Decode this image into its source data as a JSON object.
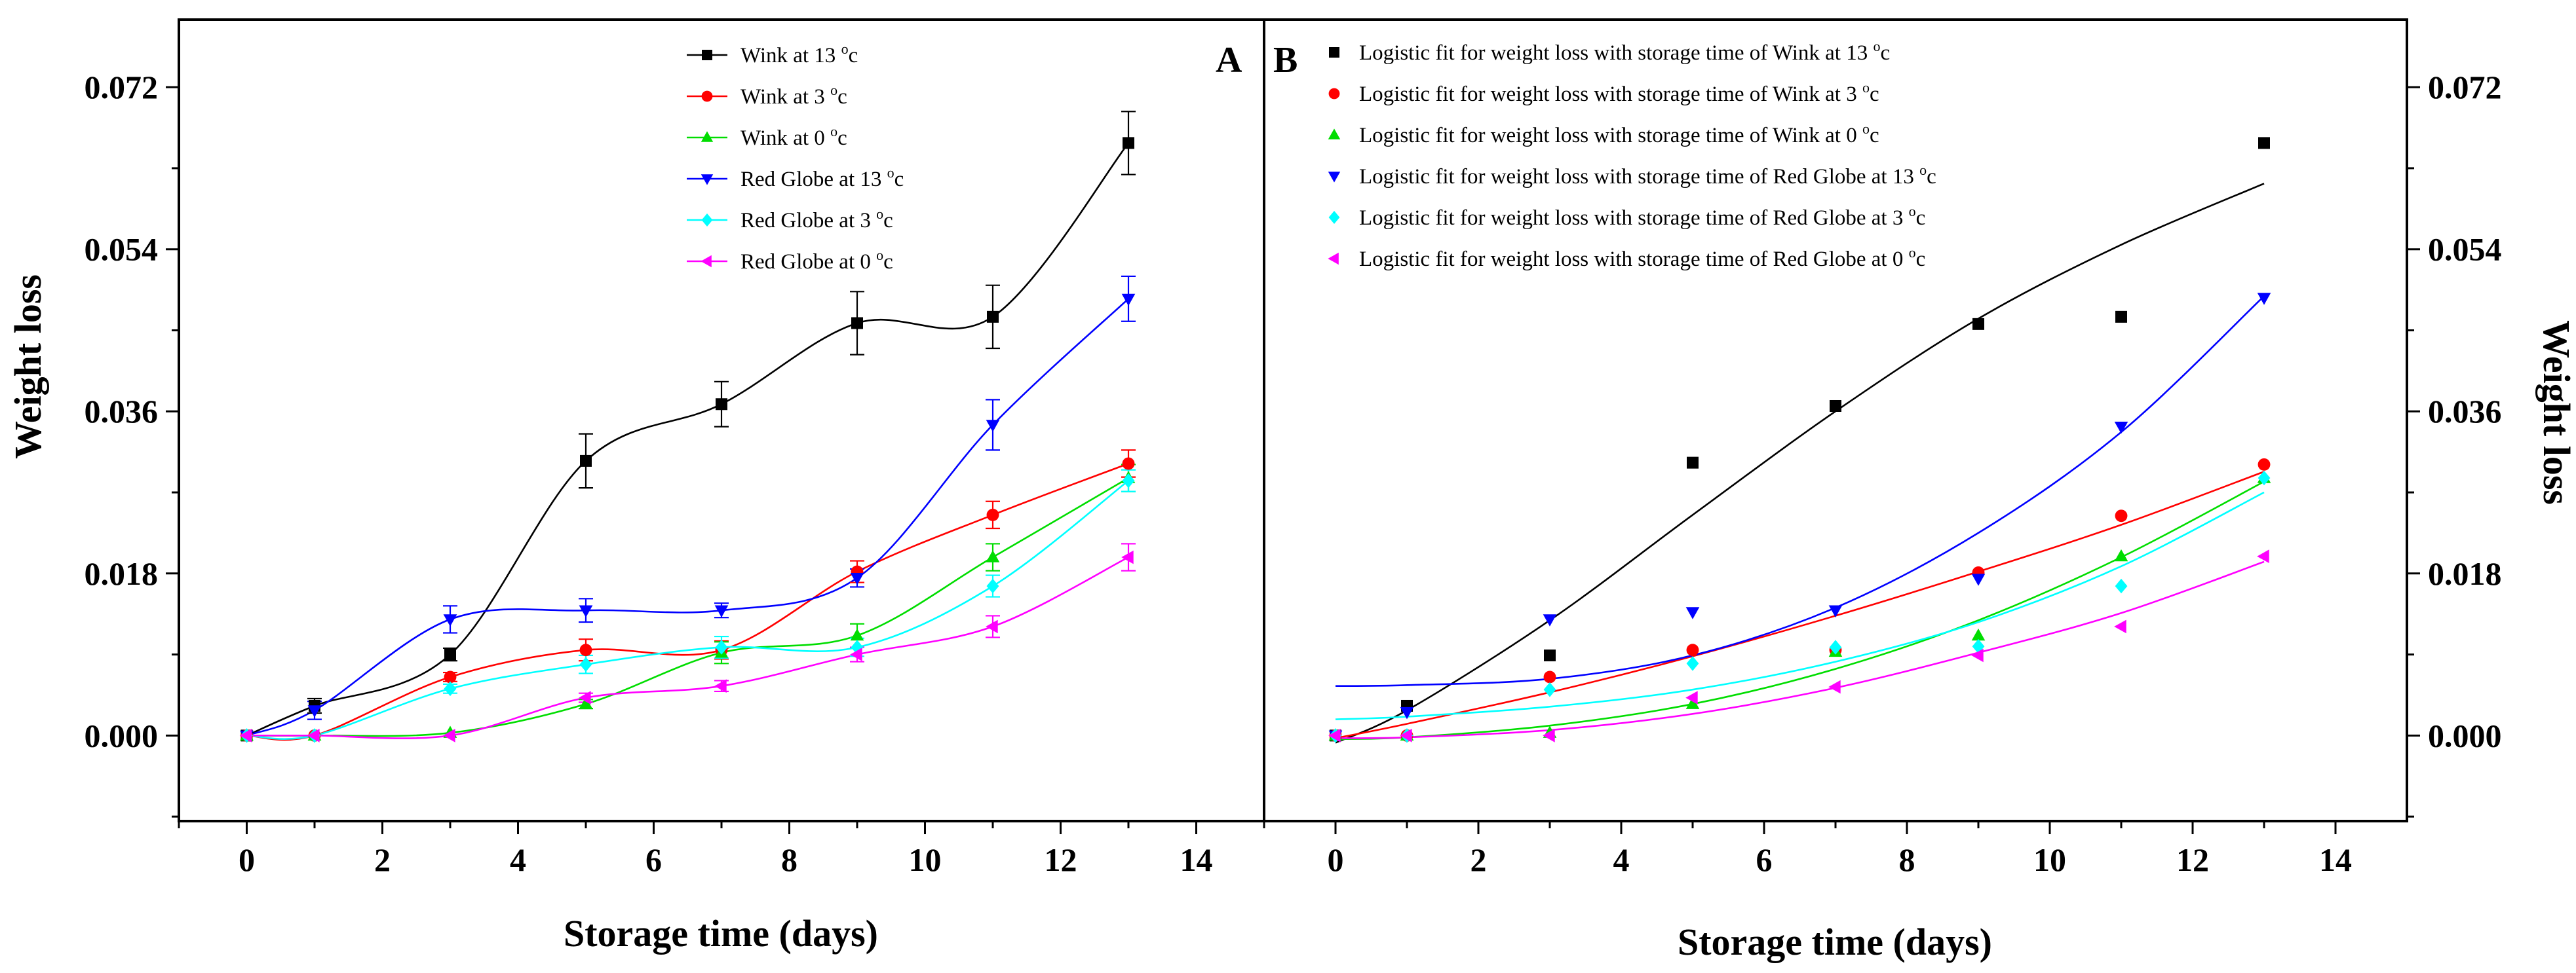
{
  "chart_data": [
    {
      "type": "line",
      "panel": "A",
      "xlabel": "Storage time (days)",
      "ylabel": "Weight loss",
      "xlim": [
        -1,
        15
      ],
      "ylim": [
        -0.0095,
        0.0795
      ],
      "xticks": [
        0,
        2,
        4,
        6,
        8,
        10,
        12,
        14
      ],
      "yticks": [
        0.0,
        0.018,
        0.036,
        0.054,
        0.072
      ],
      "xtick_labels": [
        "0",
        "2",
        "4",
        "6",
        "8",
        "10",
        "12",
        "14"
      ],
      "ytick_labels": [
        "0.000",
        "0.018",
        "0.036",
        "0.054",
        "0.072"
      ],
      "x": [
        0,
        1,
        3,
        5,
        7,
        9,
        11,
        13
      ],
      "legend_position": "top-center",
      "series": [
        {
          "name": "Wink at 13",
          "unit": "oc",
          "color": "#000000",
          "marker": "square",
          "values": [
            0.0,
            0.0033,
            0.009,
            0.0305,
            0.0368,
            0.0458,
            0.0465,
            0.0658
          ],
          "errors": [
            0.0002,
            0.0008,
            0.0007,
            0.003,
            0.0025,
            0.0035,
            0.0035,
            0.0035
          ]
        },
        {
          "name": "Wink at 3",
          "unit": "oc",
          "color": "#ff0000",
          "marker": "circle",
          "values": [
            0.0,
            0.0,
            0.0065,
            0.0095,
            0.0095,
            0.0182,
            0.0245,
            0.0302
          ],
          "errors": [
            0.0001,
            0.0003,
            0.0005,
            0.0012,
            0.001,
            0.0012,
            0.0015,
            0.0015
          ]
        },
        {
          "name": "Wink at 0",
          "unit": "oc",
          "color": "#00dd00",
          "marker": "triangle-up",
          "values": [
            0.0,
            0.0,
            0.0003,
            0.0035,
            0.0092,
            0.0111,
            0.0198,
            0.0286
          ],
          "errors": [
            0.0001,
            0.0003,
            0.0003,
            0.0005,
            0.0012,
            0.0013,
            0.0015,
            0.0015
          ]
        },
        {
          "name": "Red Globe at 13",
          "unit": "oc",
          "color": "#0000ff",
          "marker": "triangle-down",
          "values": [
            0.0,
            0.0028,
            0.0129,
            0.0139,
            0.0139,
            0.0175,
            0.0345,
            0.0485
          ],
          "errors": [
            0.0001,
            0.001,
            0.0015,
            0.0013,
            0.0008,
            0.001,
            0.0028,
            0.0025
          ]
        },
        {
          "name": "Red Globe at 3",
          "unit": "oc",
          "color": "#00ffff",
          "marker": "diamond",
          "values": [
            0.0,
            0.0,
            0.0052,
            0.0079,
            0.0098,
            0.0098,
            0.0166,
            0.0283
          ],
          "errors": [
            0.0001,
            0.0003,
            0.0005,
            0.001,
            0.0012,
            0.001,
            0.0012,
            0.0012
          ]
        },
        {
          "name": "Red Globe at 0",
          "unit": "oc",
          "color": "#ff00ff",
          "marker": "triangle-left",
          "values": [
            0.0,
            0.0,
            0.0,
            0.0042,
            0.0055,
            0.009,
            0.0121,
            0.0198
          ],
          "errors": [
            0.0001,
            0.0003,
            0.0003,
            0.0005,
            0.0006,
            0.0008,
            0.0012,
            0.0015
          ]
        }
      ]
    },
    {
      "type": "scatter",
      "panel": "B",
      "xlabel": "Storage time (days)",
      "ylabel": "Weight loss",
      "xlim": [
        -1,
        15
      ],
      "ylim": [
        -0.0095,
        0.0795
      ],
      "xticks": [
        0,
        2,
        4,
        6,
        8,
        10,
        12,
        14
      ],
      "yticks": [
        0.0,
        0.018,
        0.036,
        0.054,
        0.072
      ],
      "xtick_labels": [
        "0",
        "2",
        "4",
        "6",
        "8",
        "10",
        "12",
        "14"
      ],
      "ytick_labels": [
        "0.000",
        "0.018",
        "0.036",
        "0.054",
        "0.072"
      ],
      "x": [
        0,
        1,
        3,
        5,
        7,
        9,
        11,
        13
      ],
      "legend_position": "top",
      "fit_x": [
        0,
        1,
        3,
        5,
        7,
        9,
        11,
        13
      ],
      "series": [
        {
          "name": "Logistic fit for weight loss with storage time of Wink at 13",
          "unit": "oc",
          "color": "#000000",
          "marker": "square",
          "values": [
            0.0,
            0.0033,
            0.0089,
            0.0303,
            0.0366,
            0.0457,
            0.0465,
            0.0658
          ],
          "fit": [
            -0.0008,
            0.0028,
            0.0128,
            0.0245,
            0.036,
            0.0463,
            0.0545,
            0.0613
          ]
        },
        {
          "name": "Logistic fit for weight loss with storage time of Wink at 3",
          "unit": "oc",
          "color": "#ff0000",
          "marker": "circle",
          "values": [
            0.0,
            0.0,
            0.0065,
            0.0095,
            0.0095,
            0.0181,
            0.0244,
            0.0301
          ],
          "fit": [
            -0.0003,
            0.0013,
            0.0048,
            0.0088,
            0.0133,
            0.0182,
            0.0234,
            0.0293
          ]
        },
        {
          "name": "Logistic fit for weight loss with storage time of Wink  at 0",
          "unit": "oc",
          "color": "#00dd00",
          "marker": "triangle-up",
          "values": [
            0.0,
            0.0,
            0.0003,
            0.0035,
            0.0093,
            0.0111,
            0.0199,
            0.0286
          ],
          "fit": [
            -0.0004,
            -0.0002,
            0.0011,
            0.0035,
            0.0074,
            0.0128,
            0.0198,
            0.0282
          ]
        },
        {
          "name": "Logistic fit for weight loss with storage time of Red Globe at 13",
          "unit": "oc",
          "color": "#0000ff",
          "marker": "triangle-down",
          "values": [
            0.0,
            0.0026,
            0.0129,
            0.0137,
            0.0139,
            0.0174,
            0.0343,
            0.0486
          ],
          "fit": [
            0.0055,
            0.0056,
            0.0063,
            0.0089,
            0.0142,
            0.0225,
            0.0337,
            0.0488
          ]
        },
        {
          "name": "Logistic fit for weight loss with storage time of Red Globe  at 3",
          "unit": "oc",
          "color": "#00ffff",
          "marker": "diamond",
          "values": [
            0.0,
            0.0,
            0.0051,
            0.008,
            0.0098,
            0.0099,
            0.0166,
            0.0286
          ],
          "fit": [
            0.0018,
            0.0021,
            0.0032,
            0.0051,
            0.0082,
            0.0126,
            0.0188,
            0.027
          ]
        },
        {
          "name": "Logistic fit for weight loss with storage time of Red Globe at 0",
          "unit": "oc",
          "color": "#ff00ff",
          "marker": "triangle-left",
          "values": [
            0.0,
            0.0,
            0.0,
            0.0042,
            0.0054,
            0.0089,
            0.0121,
            0.0199
          ],
          "fit": [
            -0.0003,
            -0.0002,
            0.0006,
            0.0024,
            0.0053,
            0.0092,
            0.0136,
            0.0193
          ]
        }
      ]
    }
  ]
}
